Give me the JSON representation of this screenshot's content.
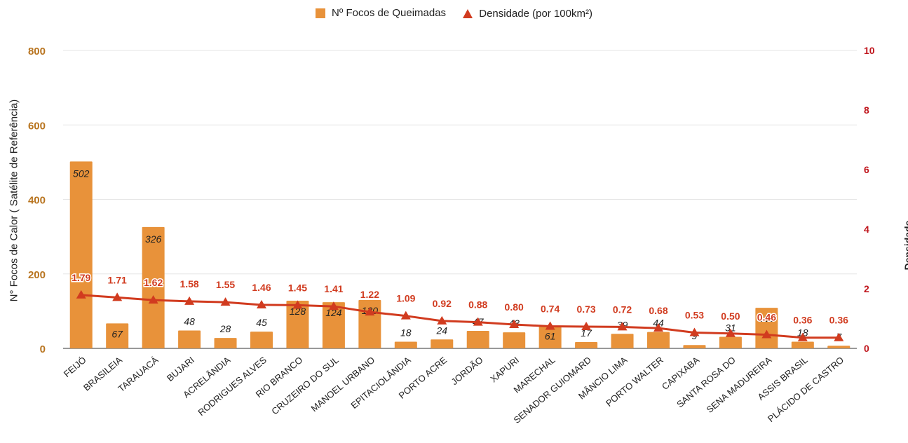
{
  "legend": {
    "bar_label": "Nº Focos de Queimadas",
    "line_label": "Densidade (por 100km²)"
  },
  "axes": {
    "y_left_label": "N° Focos de Calor ( Satélite de Referência)",
    "y_right_label": "Densidade"
  },
  "colors": {
    "bar": "#E8923A",
    "line": "#D13B1F",
    "left_tick": "#B8741F",
    "right_tick": "#C0161D",
    "grid": "#E6E6E6"
  },
  "chart_data": {
    "type": "bar",
    "categories": [
      "FEIJÓ",
      "BRASILEIA",
      "TARAUACÁ",
      "BUJARI",
      "ACRELÂNDIA",
      "RODRIGUES ALVES",
      "RIO BRANCO",
      "CRUZEIRO DO SUL",
      "MANOEL URBANO",
      "EPITACIOLÂNDIA",
      "PORTO ACRE",
      "JORDÃO",
      "XAPURI",
      "MARECHAL",
      "SENADOR GUIOMARD",
      "MÂNCIO LIMA",
      "PORTO WALTER",
      "CAPIXABA",
      "SANTA ROSA DO",
      "SENA MADUREIRA",
      "ASSIS BRASIL",
      "PLÁCIDO DE CASTRO"
    ],
    "series": [
      {
        "name": "Nº Focos de Queimadas",
        "type": "bar",
        "axis": "left",
        "values": [
          502,
          67,
          326,
          48,
          28,
          45,
          128,
          124,
          130,
          18,
          24,
          47,
          43,
          61,
          17,
          39,
          44,
          9,
          31,
          109,
          18,
          7
        ],
        "labels": [
          "502",
          "67",
          "326",
          "48",
          "28",
          "45",
          "128",
          "124",
          "130",
          "18",
          "24",
          "47",
          "43",
          "61",
          "17",
          "39",
          "44",
          "9",
          "31",
          "109",
          "18",
          "7"
        ]
      },
      {
        "name": "Densidade (por 100km²)",
        "type": "line",
        "axis": "right",
        "values": [
          1.79,
          1.71,
          1.62,
          1.58,
          1.55,
          1.46,
          1.45,
          1.41,
          1.22,
          1.09,
          0.92,
          0.88,
          0.8,
          0.74,
          0.73,
          0.72,
          0.68,
          0.53,
          0.5,
          0.46,
          0.36,
          0.36
        ],
        "labels": [
          "1.79",
          "1.71",
          "1.62",
          "1.58",
          "1.55",
          "1.46",
          "1.45",
          "1.41",
          "1.22",
          "1.09",
          "0.92",
          "0.88",
          "0.80",
          "0.74",
          "0.73",
          "0.72",
          "0.68",
          "0.53",
          "0.50",
          "0.46",
          "0.36",
          "0.36"
        ]
      }
    ],
    "y_left": {
      "ylim": [
        0,
        800
      ],
      "ticks": [
        "0",
        "200",
        "400",
        "600",
        "800"
      ]
    },
    "y_right": {
      "ylim": [
        0,
        10
      ],
      "ticks": [
        "0",
        "2",
        "4",
        "6",
        "8",
        "10"
      ]
    },
    "grid": true,
    "legend_position": "top-center"
  }
}
